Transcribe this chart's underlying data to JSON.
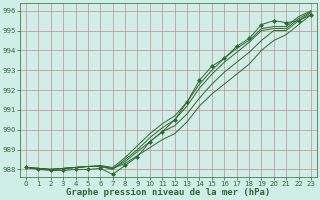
{
  "x": [
    0,
    1,
    2,
    3,
    4,
    5,
    6,
    7,
    8,
    9,
    10,
    11,
    12,
    13,
    14,
    15,
    16,
    17,
    18,
    19,
    20,
    21,
    22,
    23
  ],
  "line1": [
    988.1,
    988.05,
    988.0,
    988.05,
    988.1,
    988.15,
    988.15,
    988.05,
    988.3,
    988.7,
    989.1,
    989.5,
    989.8,
    990.4,
    991.2,
    991.8,
    992.3,
    992.8,
    993.3,
    994.0,
    994.5,
    994.8,
    995.3,
    995.8
  ],
  "line2": [
    988.1,
    988.05,
    988.0,
    988.05,
    988.1,
    988.15,
    988.15,
    988.05,
    988.4,
    988.9,
    989.4,
    989.9,
    990.2,
    990.8,
    991.6,
    992.3,
    992.9,
    993.4,
    993.9,
    994.5,
    995.0,
    995.0,
    995.5,
    995.9
  ],
  "line3": [
    988.1,
    988.05,
    988.0,
    988.05,
    988.1,
    988.15,
    988.15,
    988.0,
    988.5,
    989.0,
    989.6,
    990.1,
    990.5,
    991.2,
    992.1,
    992.8,
    993.4,
    993.9,
    994.4,
    995.0,
    995.1,
    995.1,
    995.6,
    995.95
  ],
  "line4": [
    988.1,
    988.05,
    988.0,
    988.05,
    988.1,
    988.15,
    988.2,
    988.1,
    988.6,
    989.2,
    989.8,
    990.3,
    990.7,
    991.4,
    992.3,
    993.0,
    993.6,
    994.1,
    994.5,
    995.1,
    995.2,
    995.2,
    995.7,
    996.0
  ],
  "line_marker": [
    988.1,
    988.0,
    987.95,
    987.95,
    988.0,
    988.0,
    988.05,
    987.75,
    988.2,
    988.65,
    989.4,
    989.9,
    990.5,
    991.4,
    992.5,
    993.2,
    993.6,
    994.2,
    994.6,
    995.3,
    995.5,
    995.4,
    995.5,
    995.8
  ],
  "ylim": [
    987.6,
    996.4
  ],
  "yticks": [
    988,
    989,
    990,
    991,
    992,
    993,
    994,
    995,
    996
  ],
  "xticks": [
    0,
    1,
    2,
    3,
    4,
    5,
    6,
    7,
    8,
    9,
    10,
    11,
    12,
    13,
    14,
    15,
    16,
    17,
    18,
    19,
    20,
    21,
    22,
    23
  ],
  "line_color": "#2d6a2d",
  "bg_color": "#d0eee8",
  "grid_color": "#cc8888",
  "xlabel": "Graphe pression niveau de la mer (hPa)",
  "xlabel_fontsize": 6.5
}
